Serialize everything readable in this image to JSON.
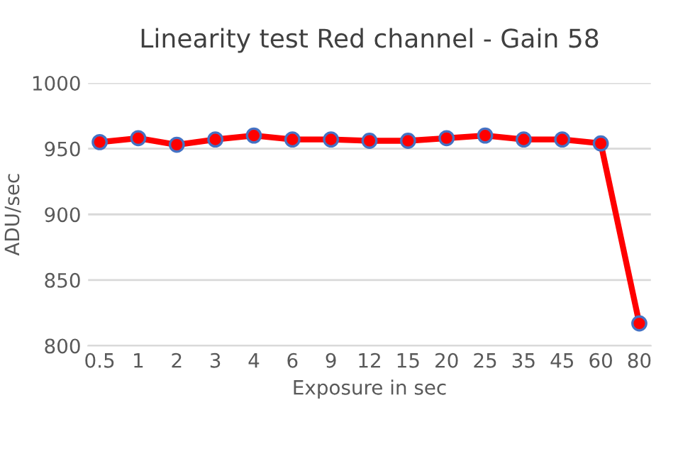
{
  "chart_data": {
    "type": "line",
    "title": "Linearity test Red channel - Gain 58",
    "xlabel": "Exposure in sec",
    "ylabel": "ADU/sec",
    "categories": [
      "0.5",
      "1",
      "2",
      "3",
      "4",
      "6",
      "9",
      "12",
      "15",
      "20",
      "25",
      "35",
      "45",
      "60",
      "80"
    ],
    "series": [
      {
        "color": "#ff0000",
        "values": [
          955,
          958,
          953,
          957,
          960,
          957,
          957,
          956,
          956,
          958,
          960,
          957,
          957,
          954,
          817
        ]
      }
    ],
    "ylim": [
      800,
      1000
    ],
    "yticks": [
      800,
      850,
      900,
      950,
      1000
    ],
    "grid": "y",
    "marker": "circle",
    "line_style": "solid"
  }
}
